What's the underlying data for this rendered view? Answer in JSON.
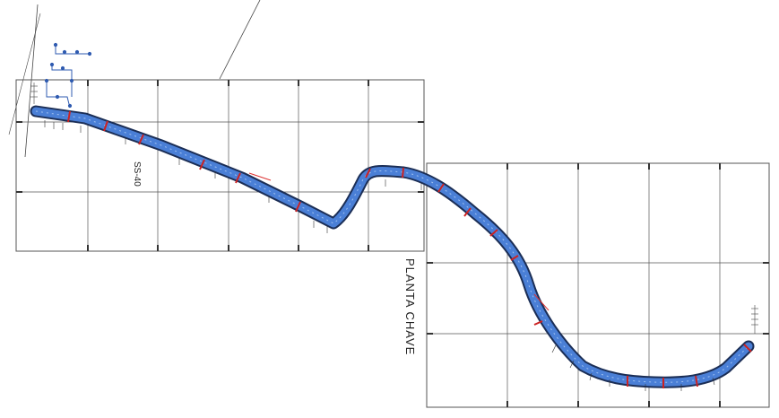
{
  "drawing": {
    "main_label": "PLANTA CHAVE",
    "road_label": "SS-40"
  },
  "colors": {
    "road_fill": "#4a7fd6",
    "road_edge": "#1b2e56",
    "grid": "#555555",
    "marker": "#cc2222",
    "background": "#ffffff"
  }
}
